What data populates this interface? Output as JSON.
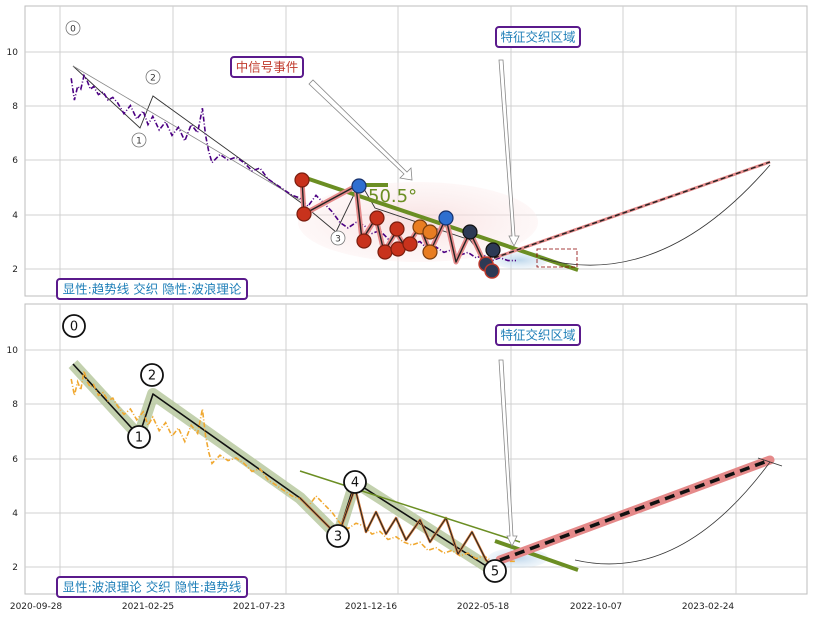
{
  "chart_data": [
    {
      "type": "line",
      "panel": "top",
      "x_ticks": [
        "2020-09-28",
        "2021-02-25",
        "2021-07-23",
        "2021-12-16",
        "2022-05-18",
        "2022-10-07",
        "2023-02-24"
      ],
      "y_ticks": [
        2,
        4,
        6,
        8,
        10
      ],
      "ylim": [
        1,
        12
      ],
      "grid": true,
      "annotations": {
        "wave_labels": [
          "0",
          "1",
          "2",
          "3"
        ],
        "angle_label": "50.5°",
        "event_label": "中信号事件",
        "zone_label": "特征交织区域",
        "footer_label": "显性:趋势线 交织 隐性:波浪理论"
      },
      "series": [
        {
          "color": "#4b0082",
          "points": [
            [
              7,
              8.9
            ],
            [
              9,
              8.1
            ],
            [
              11,
              8.6
            ],
            [
              13,
              8.5
            ],
            [
              15,
              9.0
            ],
            [
              17,
              8.8
            ],
            [
              19,
              8.5
            ],
            [
              21,
              8.6
            ],
            [
              24,
              8.3
            ],
            [
              27,
              8.4
            ],
            [
              30,
              8.1
            ],
            [
              33,
              8.2
            ],
            [
              36,
              8.0
            ],
            [
              40,
              7.6
            ],
            [
              44,
              7.9
            ],
            [
              48,
              7.4
            ],
            [
              52,
              7.7
            ],
            [
              55,
              7.2
            ],
            [
              58,
              7.5
            ],
            [
              62,
              7.0
            ],
            [
              66,
              7.3
            ],
            [
              70,
              6.8
            ],
            [
              74,
              7.1
            ],
            [
              78,
              6.6
            ],
            [
              82,
              7.2
            ],
            [
              86,
              6.9
            ],
            [
              89,
              7.8
            ],
            [
              91,
              6.8
            ],
            [
              93,
              6.2
            ],
            [
              95,
              5.8
            ],
            [
              100,
              6.1
            ],
            [
              105,
              5.9
            ],
            [
              110,
              6.0
            ],
            [
              115,
              5.8
            ],
            [
              120,
              5.5
            ],
            [
              125,
              5.6
            ],
            [
              130,
              5.2
            ],
            [
              135,
              5.0
            ],
            [
              140,
              4.8
            ],
            [
              145,
              4.6
            ],
            [
              150,
              4.5
            ],
            [
              155,
              4.2
            ],
            [
              160,
              4.6
            ],
            [
              165,
              4.3
            ],
            [
              170,
              4.0
            ],
            [
              175,
              3.6
            ],
            [
              180,
              3.4
            ],
            [
              185,
              3.6
            ],
            [
              190,
              3.5
            ],
            [
              195,
              3.2
            ],
            [
              200,
              3.3
            ],
            [
              205,
              3.0
            ],
            [
              210,
              3.1
            ],
            [
              215,
              2.9
            ],
            [
              220,
              2.8
            ],
            [
              225,
              2.9
            ],
            [
              230,
              2.6
            ],
            [
              235,
              2.7
            ],
            [
              240,
              2.5
            ],
            [
              245,
              2.6
            ],
            [
              250,
              2.4
            ],
            [
              255,
              2.5
            ],
            [
              260,
              2.3
            ],
            [
              265,
              2.4
            ],
            [
              270,
              2.2
            ],
            [
              275,
              2.3
            ],
            [
              280,
              2.2
            ],
            [
              285,
              2.2
            ]
          ]
        }
      ]
    },
    {
      "type": "line",
      "panel": "bottom",
      "x_ticks": [
        "2020-09-28",
        "2021-02-25",
        "2021-07-23",
        "2021-12-16",
        "2022-05-18",
        "2022-10-07",
        "2023-02-24"
      ],
      "y_ticks": [
        2,
        4,
        6,
        8,
        10
      ],
      "ylim": [
        1,
        12
      ],
      "grid": true,
      "annotations": {
        "wave_labels": [
          "0",
          "1",
          "2",
          "3",
          "4",
          "5"
        ],
        "zone_label": "特征交织区域",
        "footer_label": "显性:波浪理论 交织 隐性:趋势线"
      },
      "series": [
        {
          "color": "#f0a830",
          "points": [
            [
              7,
              8.8
            ],
            [
              9,
              8.2
            ],
            [
              11,
              8.7
            ],
            [
              13,
              8.4
            ],
            [
              15,
              9.1
            ],
            [
              17,
              8.7
            ],
            [
              19,
              8.5
            ],
            [
              21,
              8.6
            ],
            [
              24,
              8.2
            ],
            [
              27,
              8.3
            ],
            [
              30,
              8.0
            ],
            [
              33,
              8.1
            ],
            [
              36,
              7.8
            ],
            [
              40,
              7.5
            ],
            [
              44,
              7.7
            ],
            [
              48,
              7.3
            ],
            [
              52,
              7.6
            ],
            [
              55,
              7.1
            ],
            [
              58,
              7.4
            ],
            [
              62,
              6.9
            ],
            [
              66,
              7.2
            ],
            [
              70,
              6.7
            ],
            [
              74,
              7.0
            ],
            [
              78,
              6.5
            ],
            [
              82,
              7.1
            ],
            [
              86,
              6.8
            ],
            [
              89,
              7.7
            ],
            [
              91,
              6.7
            ],
            [
              93,
              6.1
            ],
            [
              95,
              5.7
            ],
            [
              100,
              6.0
            ],
            [
              105,
              5.8
            ],
            [
              110,
              5.9
            ],
            [
              115,
              5.7
            ],
            [
              120,
              5.4
            ],
            [
              125,
              5.5
            ],
            [
              130,
              5.1
            ],
            [
              135,
              4.9
            ],
            [
              140,
              4.7
            ],
            [
              145,
              4.5
            ],
            [
              150,
              4.4
            ],
            [
              155,
              4.1
            ],
            [
              160,
              4.5
            ],
            [
              165,
              4.2
            ],
            [
              170,
              3.9
            ],
            [
              175,
              3.5
            ],
            [
              180,
              3.3
            ],
            [
              185,
              3.5
            ],
            [
              190,
              3.4
            ],
            [
              195,
              3.1
            ],
            [
              200,
              3.2
            ],
            [
              205,
              2.9
            ],
            [
              210,
              3.0
            ],
            [
              215,
              2.8
            ],
            [
              220,
              2.7
            ],
            [
              225,
              2.8
            ],
            [
              230,
              2.5
            ],
            [
              235,
              2.6
            ],
            [
              240,
              2.4
            ],
            [
              245,
              2.5
            ],
            [
              250,
              2.3
            ],
            [
              255,
              2.4
            ],
            [
              260,
              2.2
            ],
            [
              265,
              2.3
            ],
            [
              270,
              2.1
            ],
            [
              275,
              2.2
            ],
            [
              280,
              2.1
            ],
            [
              285,
              2.1
            ]
          ]
        }
      ]
    }
  ]
}
